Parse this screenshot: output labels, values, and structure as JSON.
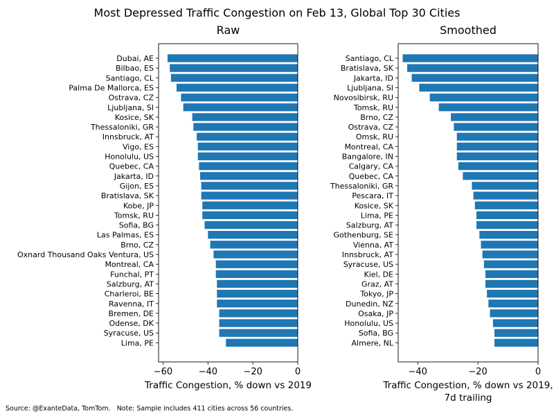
{
  "title": "Most Depressed Traffic Congestion on Feb 13, Global Top 30 Cities",
  "source_note": "Source: @ExanteData, TomTom.   Note: Sample includes 411 cities across 56 countries.",
  "bar_color": "#1f77b4",
  "chart_data": [
    {
      "type": "bar",
      "orientation": "horizontal",
      "title": "Raw",
      "xlabel": "Traffic Congestion, % down vs 2019",
      "xlim": [
        -62,
        0
      ],
      "xticks": [
        -60,
        -40,
        -20,
        0
      ],
      "grid": false,
      "categories": [
        "Dubai, AE",
        "Bilbao, ES",
        "Santiago, CL",
        "Palma De Mallorca, ES",
        "Ostrava, CZ",
        "Ljubljana, SI",
        "Kosice, SK",
        "Thessaloniki, GR",
        "Innsbruck, AT",
        "Vigo, ES",
        "Honolulu, US",
        "Quebec, CA",
        "Jakarta, ID",
        "Gijon, ES",
        "Bratislava, SK",
        "Kobe, JP",
        "Tomsk, RU",
        "Sofia, BG",
        "Las Palmas, ES",
        "Brno, CZ",
        "Oxnard Thousand Oaks Ventura, US",
        "Montreal, CA",
        "Funchal, PT",
        "Salzburg, AT",
        "Charleroi, BE",
        "Ravenna, IT",
        "Bremen, DE",
        "Odense, DK",
        "Syracuse, US",
        "Lima, PE"
      ],
      "values": [
        -58,
        -57,
        -56.5,
        -54,
        -52,
        -51,
        -47,
        -46.5,
        -45,
        -44.5,
        -44.5,
        -44,
        -43.5,
        -43,
        -43,
        -42.5,
        -42.5,
        -41.5,
        -40,
        -39,
        -37.5,
        -36.5,
        -36.5,
        -36,
        -36,
        -36,
        -35,
        -35,
        -35,
        -32
      ]
    },
    {
      "type": "bar",
      "orientation": "horizontal",
      "title": "Smoothed",
      "xlabel": "Traffic Congestion, % down vs 2019,\n7d trailing",
      "xlim": [
        -46.5,
        0
      ],
      "xticks": [
        -40,
        -20,
        0
      ],
      "grid": false,
      "categories": [
        "Santiago, CL",
        "Bratislava, SK",
        "Jakarta, ID",
        "Ljubljana, SI",
        "Novosibirsk, RU",
        "Tomsk, RU",
        "Brno, CZ",
        "Ostrava, CZ",
        "Omsk, RU",
        "Montreal, CA",
        "Bangalore, IN",
        "Calgary, CA",
        "Quebec, CA",
        "Thessaloniki, GR",
        "Pescara, IT",
        "Kosice, SK",
        "Lima, PE",
        "Salzburg, AT",
        "Gothenburg, SE",
        "Vienna, AT",
        "Innsbruck, AT",
        "Syracuse, US",
        "Kiel, DE",
        "Graz, AT",
        "Tokyo, JP",
        "Dunedin, NZ",
        "Osaka, JP",
        "Honolulu, US",
        "Sofia, BG",
        "Almere, NL"
      ],
      "values": [
        -45,
        -43.5,
        -42,
        -39.5,
        -36,
        -33,
        -29,
        -28,
        -27,
        -27,
        -27,
        -26.5,
        -25,
        -22,
        -21.5,
        -21,
        -20.5,
        -20.5,
        -19.5,
        -19,
        -18.5,
        -18,
        -17.5,
        -17.5,
        -17,
        -16.5,
        -16,
        -15,
        -14.5,
        -14.5
      ]
    }
  ]
}
